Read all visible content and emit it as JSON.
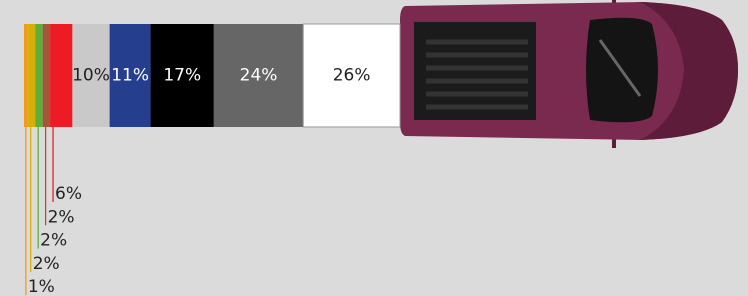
{
  "chart_data": {
    "type": "stacked-bar",
    "values": [
      1,
      2,
      2,
      2,
      6,
      10,
      11,
      17,
      24,
      26
    ],
    "value_labels": [
      "1%",
      "2%",
      "2%",
      "2%",
      "6%",
      "10%",
      "11%",
      "17%",
      "24%",
      "26%"
    ],
    "colors": [
      "#f39a1e",
      "#d6b00a",
      "#5fae3b",
      "#a5563a",
      "#ed1c24",
      "#c9c9c9",
      "#253f8e",
      "#000000",
      "#666666",
      "#ffffff"
    ]
  }
}
